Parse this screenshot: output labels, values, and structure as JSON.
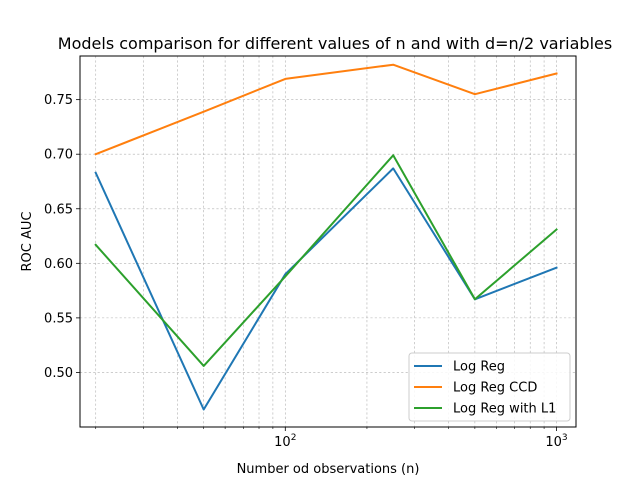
{
  "chart_data": {
    "type": "line",
    "title": "Models comparison for different values of n and with d=n/2 variables",
    "xlabel": "Number od observations (n)",
    "ylabel": "ROC AUC",
    "xscale": "log",
    "xlim": [
      17.5,
      1180
    ],
    "ylim": [
      0.45,
      0.79
    ],
    "x_major_ticks": [
      100,
      1000
    ],
    "x_major_tick_labels": [
      {
        "base": "10",
        "exp": "2"
      },
      {
        "base": "10",
        "exp": "3"
      }
    ],
    "y_ticks": [
      0.5,
      0.55,
      0.6,
      0.65,
      0.7,
      0.75
    ],
    "y_tick_labels": [
      "0.50",
      "0.55",
      "0.60",
      "0.65",
      "0.70",
      "0.75"
    ],
    "grid": true,
    "legend_position": "lower-right",
    "x": [
      20,
      50,
      100,
      250,
      500,
      1000
    ],
    "series": [
      {
        "name": "Log Reg",
        "color": "#1f77b4",
        "values": [
          0.683,
          0.466,
          0.59,
          0.687,
          0.567,
          0.596
        ]
      },
      {
        "name": "Log Reg CCD",
        "color": "#ff7f0e",
        "values": [
          0.7,
          0.739,
          0.769,
          0.782,
          0.755,
          0.774
        ]
      },
      {
        "name": "Log Reg with L1",
        "color": "#2ca02c",
        "values": [
          0.617,
          0.506,
          0.588,
          0.699,
          0.567,
          0.631
        ]
      }
    ]
  }
}
